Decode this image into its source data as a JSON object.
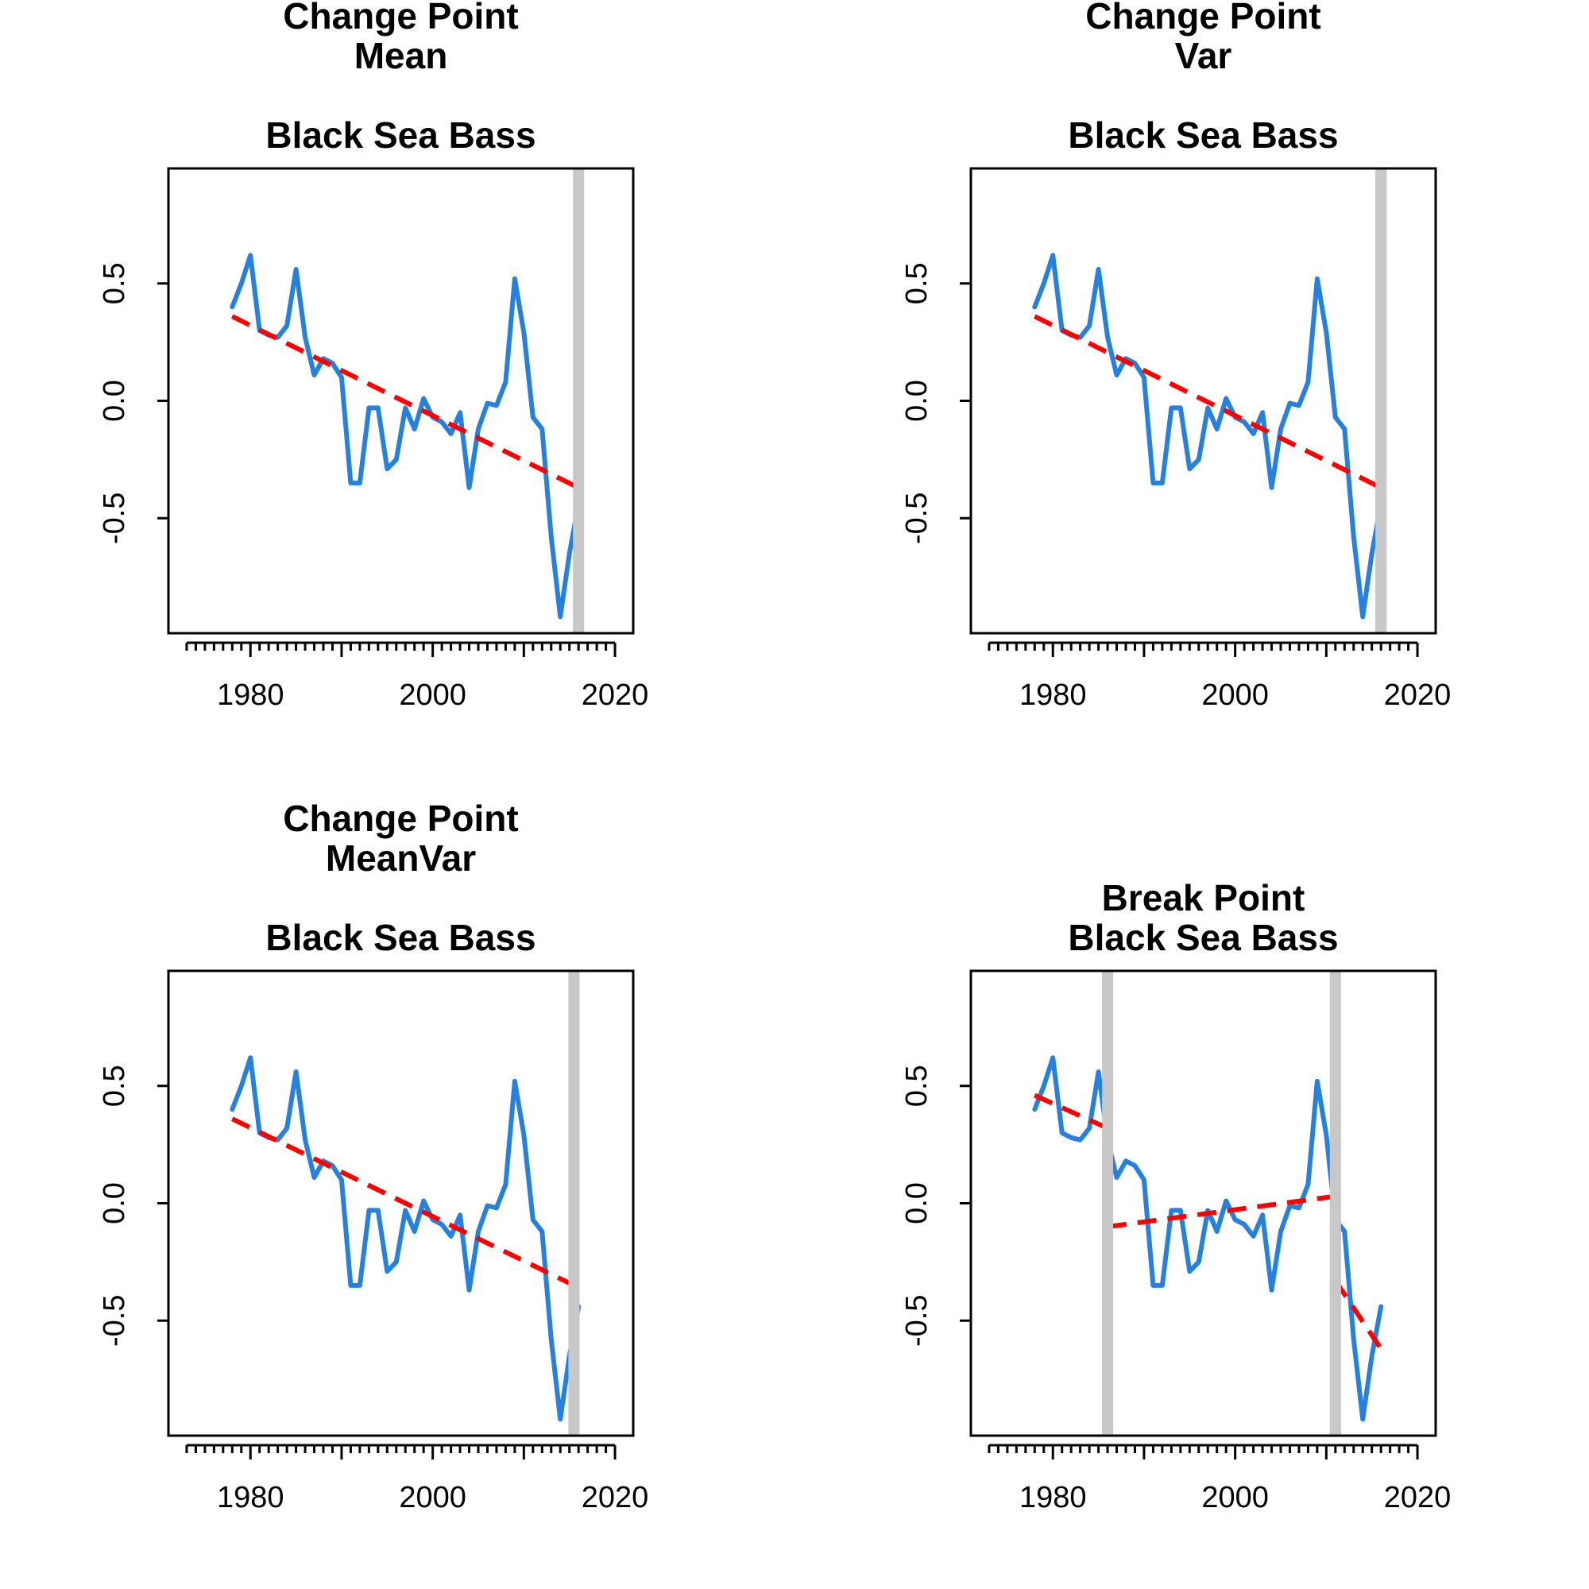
{
  "colors": {
    "series": "#2581DD",
    "trend": "#FF0000",
    "band": "#C8C8C8"
  },
  "chart_data": [
    {
      "type": "line",
      "title_lines": [
        "Change Point",
        "Mean",
        "",
        "Black Sea Bass"
      ],
      "xlim": [
        1971,
        2022
      ],
      "ylim": [
        -0.99,
        0.99
      ],
      "x_major_ticks": [
        1980,
        2000,
        2020
      ],
      "x_tick_labels": [
        "1980",
        "2000",
        "2020"
      ],
      "y_ticks": [
        -0.5,
        0,
        0.5
      ],
      "y_tick_labels": [
        "-0.5",
        "0.0",
        "0.5"
      ],
      "series": [
        {
          "name": "Black Sea Bass",
          "x": [
            1978,
            1979,
            1980,
            1981,
            1982,
            1983,
            1984,
            1985,
            1986,
            1987,
            1988,
            1989,
            1990,
            1991,
            1992,
            1993,
            1994,
            1995,
            1996,
            1997,
            1998,
            1999,
            2000,
            2001,
            2002,
            2003,
            2004,
            2005,
            2006,
            2007,
            2008,
            2009,
            2010,
            2011,
            2012,
            2013,
            2014,
            2015,
            2016
          ],
          "y": [
            0.4,
            0.5,
            0.62,
            0.3,
            0.28,
            0.27,
            0.32,
            0.56,
            0.27,
            0.11,
            0.18,
            0.16,
            0.1,
            -0.35,
            -0.35,
            -0.03,
            -0.03,
            -0.29,
            -0.25,
            -0.03,
            -0.12,
            0.01,
            -0.07,
            -0.09,
            -0.14,
            -0.05,
            -0.37,
            -0.12,
            -0.01,
            -0.02,
            0.08,
            0.52,
            0.29,
            -0.07,
            -0.12,
            -0.58,
            -0.92,
            -0.65,
            -0.44
          ]
        }
      ],
      "trend_segments": [
        {
          "x": [
            1978,
            2016
          ],
          "y": [
            0.36,
            -0.37
          ]
        }
      ],
      "change_points": [
        2016
      ]
    },
    {
      "type": "line",
      "title_lines": [
        "Change Point",
        "Var",
        "",
        "Black Sea Bass"
      ],
      "xlim": [
        1971,
        2022
      ],
      "ylim": [
        -0.99,
        0.99
      ],
      "x_major_ticks": [
        1980,
        2000,
        2020
      ],
      "x_tick_labels": [
        "1980",
        "2000",
        "2020"
      ],
      "y_ticks": [
        -0.5,
        0,
        0.5
      ],
      "y_tick_labels": [
        "-0.5",
        "0.0",
        "0.5"
      ],
      "series": [
        {
          "name": "Black Sea Bass",
          "x": [
            1978,
            1979,
            1980,
            1981,
            1982,
            1983,
            1984,
            1985,
            1986,
            1987,
            1988,
            1989,
            1990,
            1991,
            1992,
            1993,
            1994,
            1995,
            1996,
            1997,
            1998,
            1999,
            2000,
            2001,
            2002,
            2003,
            2004,
            2005,
            2006,
            2007,
            2008,
            2009,
            2010,
            2011,
            2012,
            2013,
            2014,
            2015,
            2016
          ],
          "y": [
            0.4,
            0.5,
            0.62,
            0.3,
            0.28,
            0.27,
            0.32,
            0.56,
            0.27,
            0.11,
            0.18,
            0.16,
            0.1,
            -0.35,
            -0.35,
            -0.03,
            -0.03,
            -0.29,
            -0.25,
            -0.03,
            -0.12,
            0.01,
            -0.07,
            -0.09,
            -0.14,
            -0.05,
            -0.37,
            -0.12,
            -0.01,
            -0.02,
            0.08,
            0.52,
            0.29,
            -0.07,
            -0.12,
            -0.58,
            -0.92,
            -0.65,
            -0.44
          ]
        }
      ],
      "trend_segments": [
        {
          "x": [
            1978,
            2016
          ],
          "y": [
            0.36,
            -0.37
          ]
        }
      ],
      "change_points": [
        2016
      ]
    },
    {
      "type": "line",
      "title_lines": [
        "Change Point",
        "MeanVar",
        "",
        "Black Sea Bass"
      ],
      "xlim": [
        1971,
        2022
      ],
      "ylim": [
        -0.99,
        0.99
      ],
      "x_major_ticks": [
        1980,
        2000,
        2020
      ],
      "x_tick_labels": [
        "1980",
        "2000",
        "2020"
      ],
      "y_ticks": [
        -0.5,
        0,
        0.5
      ],
      "y_tick_labels": [
        "-0.5",
        "0.0",
        "0.5"
      ],
      "series": [
        {
          "name": "Black Sea Bass",
          "x": [
            1978,
            1979,
            1980,
            1981,
            1982,
            1983,
            1984,
            1985,
            1986,
            1987,
            1988,
            1989,
            1990,
            1991,
            1992,
            1993,
            1994,
            1995,
            1996,
            1997,
            1998,
            1999,
            2000,
            2001,
            2002,
            2003,
            2004,
            2005,
            2006,
            2007,
            2008,
            2009,
            2010,
            2011,
            2012,
            2013,
            2014,
            2015,
            2016
          ],
          "y": [
            0.4,
            0.5,
            0.62,
            0.3,
            0.28,
            0.27,
            0.32,
            0.56,
            0.27,
            0.11,
            0.18,
            0.16,
            0.1,
            -0.35,
            -0.35,
            -0.03,
            -0.03,
            -0.29,
            -0.25,
            -0.03,
            -0.12,
            0.01,
            -0.07,
            -0.09,
            -0.14,
            -0.05,
            -0.37,
            -0.12,
            -0.01,
            -0.02,
            0.08,
            0.52,
            0.29,
            -0.07,
            -0.12,
            -0.58,
            -0.92,
            -0.65,
            -0.44
          ]
        }
      ],
      "trend_segments": [
        {
          "x": [
            1978,
            2015
          ],
          "y": [
            0.36,
            -0.34
          ]
        }
      ],
      "change_points": [
        2015.5
      ]
    },
    {
      "type": "line",
      "title_lines": [
        "",
        "Break Point",
        "Black Sea Bass"
      ],
      "xlim": [
        1971,
        2022
      ],
      "ylim": [
        -0.99,
        0.99
      ],
      "x_major_ticks": [
        1980,
        2000,
        2020
      ],
      "x_tick_labels": [
        "1980",
        "2000",
        "2020"
      ],
      "y_ticks": [
        -0.5,
        0,
        0.5
      ],
      "y_tick_labels": [
        "-0.5",
        "0.0",
        "0.5"
      ],
      "series": [
        {
          "name": "Black Sea Bass",
          "x": [
            1978,
            1979,
            1980,
            1981,
            1982,
            1983,
            1984,
            1985,
            1986,
            1987,
            1988,
            1989,
            1990,
            1991,
            1992,
            1993,
            1994,
            1995,
            1996,
            1997,
            1998,
            1999,
            2000,
            2001,
            2002,
            2003,
            2004,
            2005,
            2006,
            2007,
            2008,
            2009,
            2010,
            2011,
            2012,
            2013,
            2014,
            2015,
            2016
          ],
          "y": [
            0.4,
            0.5,
            0.62,
            0.3,
            0.28,
            0.27,
            0.32,
            0.56,
            0.27,
            0.11,
            0.18,
            0.16,
            0.1,
            -0.35,
            -0.35,
            -0.03,
            -0.03,
            -0.29,
            -0.25,
            -0.03,
            -0.12,
            0.01,
            -0.07,
            -0.09,
            -0.14,
            -0.05,
            -0.37,
            -0.12,
            -0.01,
            -0.02,
            0.08,
            0.52,
            0.29,
            -0.07,
            -0.12,
            -0.58,
            -0.92,
            -0.65,
            -0.44
          ]
        }
      ],
      "trend_segments": [
        {
          "x": [
            1978,
            1986
          ],
          "y": [
            0.46,
            0.32
          ]
        },
        {
          "x": [
            1986,
            2011
          ],
          "y": [
            -0.1,
            0.03
          ]
        },
        {
          "x": [
            2011,
            2016
          ],
          "y": [
            -0.33,
            -0.62
          ]
        }
      ],
      "change_points": [
        1986,
        2011
      ]
    }
  ]
}
